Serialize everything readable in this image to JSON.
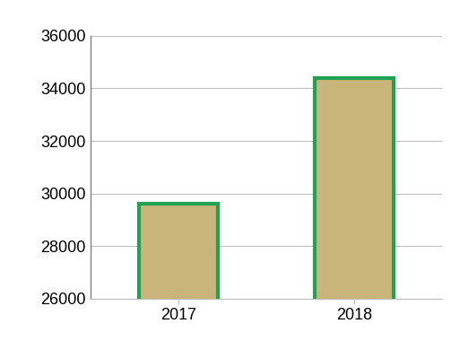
{
  "chart_data": {
    "type": "bar",
    "categories": [
      "2017",
      "2018"
    ],
    "values": [
      29600,
      34400
    ],
    "color": "#c9b57a",
    "ylim": [
      26000,
      36000
    ],
    "yticks": [
      26000,
      28000,
      30000,
      32000,
      34000,
      36000
    ],
    "grid": true
  }
}
